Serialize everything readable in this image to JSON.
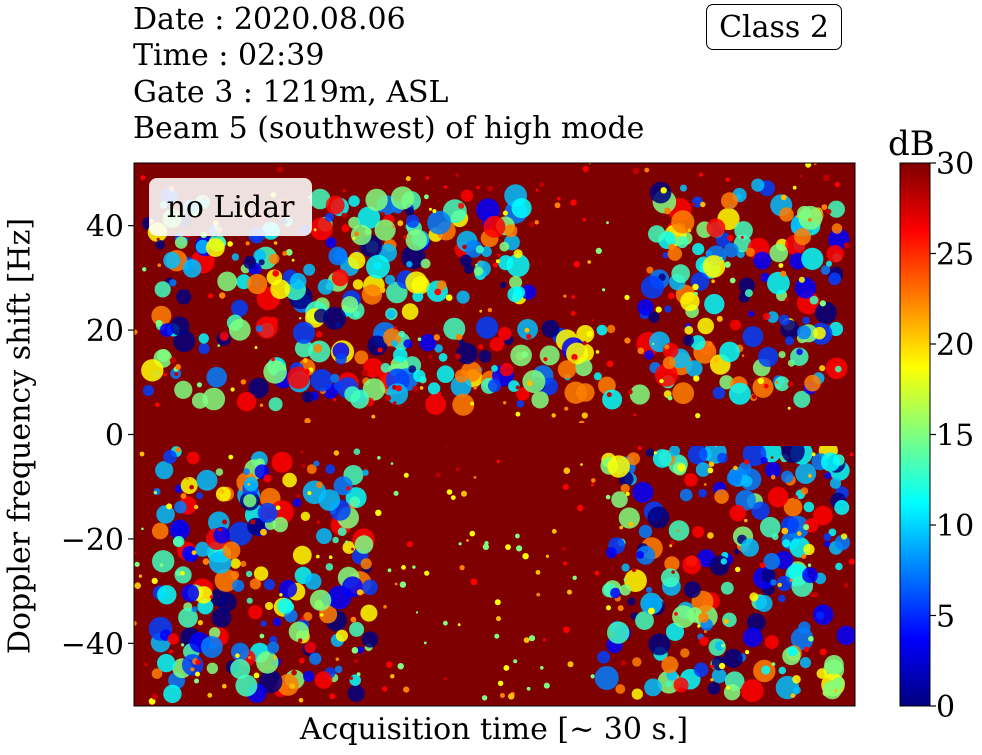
{
  "header": {
    "date": "Date : 2020.08.06",
    "time": "Time : 02:39",
    "gate": "Gate 3 : 1219m, ASL",
    "beam": "Beam 5 (southwest) of high mode"
  },
  "badges": {
    "class_label": "Class 2",
    "lidar_label": "no Lidar"
  },
  "colors": {
    "jet": [
      "#00007f",
      "#0000ff",
      "#007fff",
      "#00ffff",
      "#7fff7f",
      "#ffff00",
      "#ff7f00",
      "#ff0000",
      "#7f0000"
    ]
  },
  "chart_data": {
    "type": "heatmap",
    "xlabel": "Acquisition time [~ 30 s.]",
    "ylabel": "Doppler frequency shift [Hz]",
    "ylim": [
      -52,
      52
    ],
    "y_ticks": [
      40,
      20,
      0,
      -20,
      -40
    ],
    "y_tick_labels": [
      "40",
      "20",
      "0",
      "−20",
      "−40"
    ],
    "x_ticks": [],
    "colorbar": {
      "label": "dB",
      "range": [
        0,
        30
      ],
      "ticks": [
        30,
        25,
        20,
        15,
        10,
        5,
        0
      ],
      "tick_labels": [
        "30",
        "25",
        "20",
        "15",
        "10",
        "5",
        "0"
      ],
      "colormap": "jet"
    },
    "grid": false
  }
}
